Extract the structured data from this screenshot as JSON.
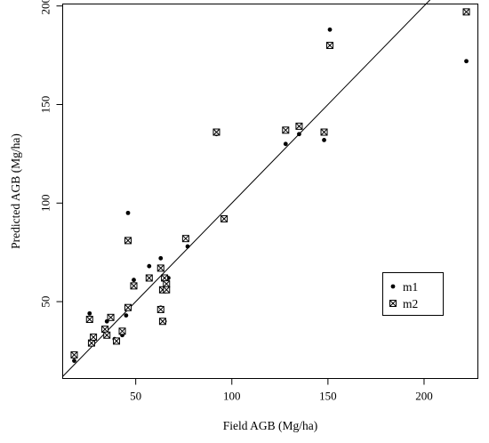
{
  "chart_data": {
    "type": "scatter",
    "xlabel": "Field AGB (Mg/ha)",
    "ylabel": "Predicted AGB (Mg/ha)",
    "xlim": [
      12,
      228
    ],
    "ylim": [
      11,
      201
    ],
    "xticks": [
      50,
      100,
      150,
      200
    ],
    "yticks": [
      50,
      100,
      150,
      200
    ],
    "xtick_labels": [
      "50",
      "100",
      "150",
      "200"
    ],
    "ytick_labels": [
      "50",
      "100",
      "150",
      "200"
    ],
    "grid": false,
    "legend_position": "right-lower",
    "reference_line": {
      "type": "1:1",
      "from": [
        12,
        12
      ],
      "to": [
        204,
        204
      ]
    },
    "series": [
      {
        "name": "m1",
        "marker": "filled-circle",
        "color": "#000000",
        "x": [
          18,
          26,
          28,
          35,
          37,
          39,
          43,
          45,
          46,
          49,
          57,
          63,
          63,
          65,
          66,
          67,
          77,
          92,
          128,
          135,
          148,
          151,
          222
        ],
        "y": [
          20,
          44,
          32,
          40,
          42,
          31,
          33,
          43,
          95,
          61,
          68,
          72,
          47,
          40,
          60,
          62,
          78,
          135,
          130,
          135,
          132,
          188,
          172
        ]
      },
      {
        "name": "m2",
        "marker": "boxed-x",
        "color": "#000000",
        "x": [
          18,
          26,
          27,
          28,
          34,
          35,
          37,
          40,
          43,
          46,
          46,
          49,
          57,
          63,
          63,
          64,
          64,
          65,
          66,
          66,
          76,
          92,
          96,
          128,
          135,
          148,
          151,
          222
        ],
        "y": [
          23,
          41,
          29,
          32,
          36,
          33,
          42,
          30,
          35,
          47,
          81,
          58,
          62,
          46,
          67,
          56,
          40,
          62,
          59,
          56,
          82,
          136,
          92,
          137,
          139,
          136,
          180,
          197
        ]
      }
    ]
  }
}
